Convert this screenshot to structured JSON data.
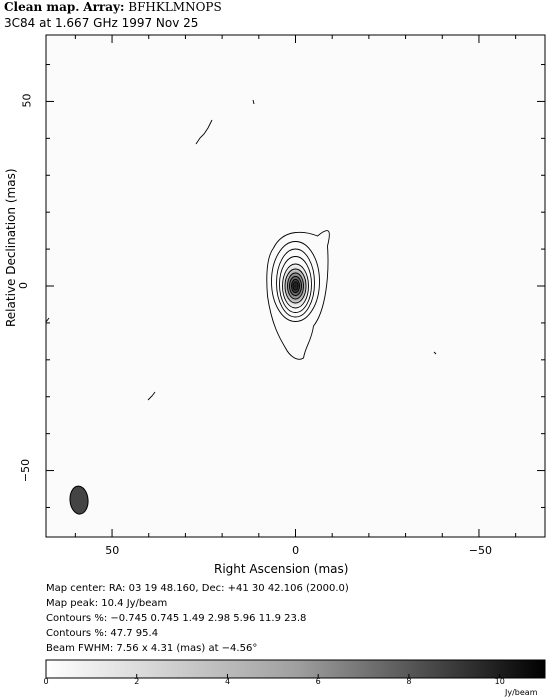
{
  "header": {
    "title_bold": "Clean map.",
    "title_bold2": "Array:",
    "title_rest": "BFHKLMNOPS",
    "subtitle": "3C84 at 1.667 GHz 1997 Nov 25"
  },
  "chart_data": {
    "type": "heatmap",
    "xlabel": "Right Ascension  (mas)",
    "ylabel": "Relative Declination  (mas)",
    "xlim": [
      68,
      -68
    ],
    "ylim": [
      -68,
      68
    ],
    "xticks": [
      {
        "value": 50,
        "label": "50"
      },
      {
        "value": 0,
        "label": "0"
      },
      {
        "value": -50,
        "label": "−50"
      }
    ],
    "yticks": [
      {
        "value": 50,
        "label": "50"
      },
      {
        "value": 0,
        "label": "0"
      },
      {
        "value": -50,
        "label": "−50"
      }
    ],
    "peak": {
      "ra": 0,
      "dec": 0,
      "value": 10.4,
      "unit": "Jy/beam"
    },
    "beam": {
      "ra": 59,
      "dec": -58,
      "major": 7.56,
      "minor": 4.31,
      "pa": -4.56
    },
    "contour_levels_percent": [
      -0.745,
      0.745,
      1.49,
      2.98,
      5.96,
      11.9,
      23.8,
      47.7,
      95.4
    ],
    "colorbar": {
      "min": 0,
      "max": 11,
      "ticks": [
        {
          "value": 0,
          "label": "0"
        },
        {
          "value": 2,
          "label": "2"
        },
        {
          "value": 4,
          "label": "4"
        },
        {
          "value": 6,
          "label": "6"
        },
        {
          "value": 8,
          "label": "8"
        },
        {
          "value": 10,
          "label": "10"
        }
      ],
      "unit": "Jy/beam"
    }
  },
  "info": {
    "map_center": "Map center:  RA: 03 19 48.160,  Dec: +41 30 42.106 (2000.0)",
    "map_peak": "Map peak: 10.4 Jy/beam",
    "contours1": "Contours %: −0.745 0.745 1.49 2.98 5.96 11.9 23.8",
    "contours2": "Contours %: 47.7 95.4",
    "beam": "Beam FWHM: 7.56 x 4.31 (mas) at −4.56°"
  }
}
